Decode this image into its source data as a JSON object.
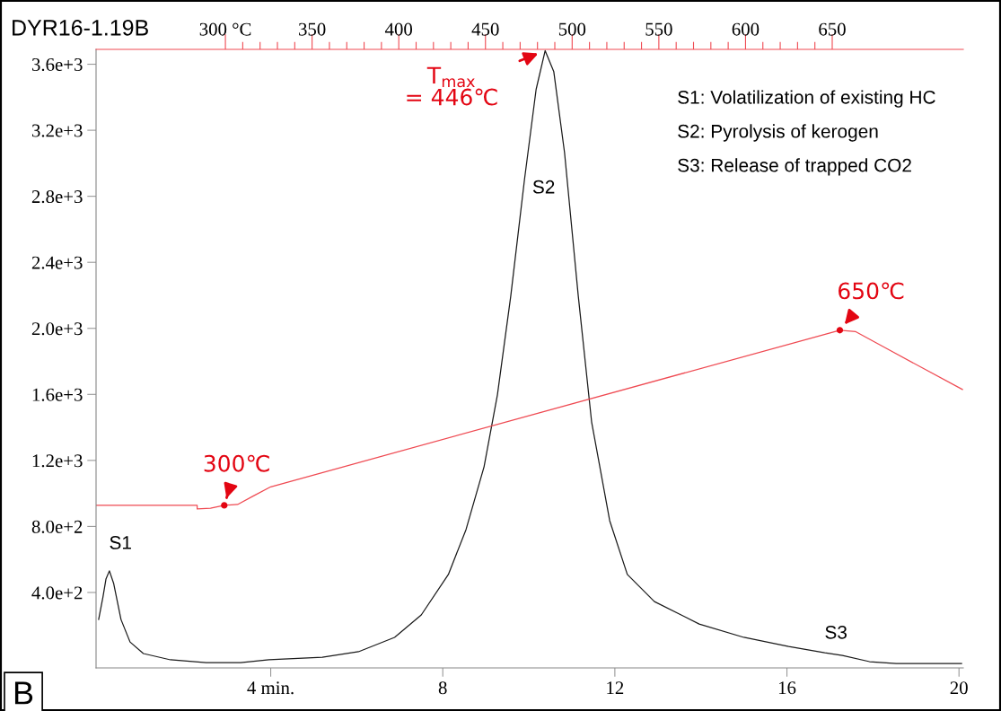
{
  "chart_data": {
    "type": "line",
    "title": "DYR16-1.19B",
    "xlim": [
      -0.06,
      20.1
    ],
    "xticks": [
      {
        "value": 4,
        "label": "4 min."
      },
      8,
      12,
      16,
      20
    ],
    "ylim": [
      -57,
      3690
    ],
    "yticks": [
      {
        "value": 400,
        "label": "4.0e+2"
      },
      {
        "value": 800,
        "label": "8.0e+2"
      },
      {
        "value": 1200,
        "label": "1.2e+3"
      },
      {
        "value": 1600,
        "label": "1.6e+3"
      },
      {
        "value": 2000,
        "label": "2.0e+3"
      },
      {
        "value": 2400,
        "label": "2.4e+3"
      },
      {
        "value": 2800,
        "label": "2.8e+3"
      },
      {
        "value": 3200,
        "label": "3.2e+3"
      },
      {
        "value": 3600,
        "label": "3.6e+3"
      }
    ],
    "x2lim": [
      225.4,
      725.6
    ],
    "x2ticks": [
      {
        "value": 300,
        "label": "300 °C"
      },
      {
        "value": 310,
        "label": null
      },
      {
        "value": 320,
        "label": null
      },
      {
        "value": 330,
        "label": null
      },
      {
        "value": 340,
        "label": null
      },
      350,
      {
        "value": 360,
        "label": null
      },
      {
        "value": 370,
        "label": null
      },
      {
        "value": 380,
        "label": null
      },
      {
        "value": 390,
        "label": null
      },
      400,
      {
        "value": 410,
        "label": null
      },
      {
        "value": 420,
        "label": null
      },
      {
        "value": 430,
        "label": null
      },
      {
        "value": 440,
        "label": null
      },
      450,
      {
        "value": 460,
        "label": null
      },
      {
        "value": 470,
        "label": null
      },
      {
        "value": 480,
        "label": null
      },
      {
        "value": 490,
        "label": null
      },
      500,
      {
        "value": 510,
        "label": null
      },
      {
        "value": 520,
        "label": null
      },
      {
        "value": 530,
        "label": null
      },
      {
        "value": 540,
        "label": null
      },
      550,
      {
        "value": 560,
        "label": null
      },
      {
        "value": 570,
        "label": null
      },
      {
        "value": 580,
        "label": null
      },
      {
        "value": 590,
        "label": null
      },
      600,
      {
        "value": 610,
        "label": null
      },
      {
        "value": 620,
        "label": null
      },
      {
        "value": 630,
        "label": null
      },
      {
        "value": 640,
        "label": null
      },
      650
    ],
    "grid": false,
    "series": [
      {
        "color": "#1a1a1a",
        "x": [
          0,
          0.1,
          0.17,
          0.25,
          0.35,
          0.52,
          0.73,
          1.04,
          1.67,
          2.5,
          3.3,
          3.96,
          5.2,
          6.04,
          6.88,
          7.5,
          8.13,
          8.54,
          8.96,
          9.27,
          9.58,
          9.9,
          10.17,
          10.38,
          10.58,
          10.83,
          11.15,
          11.46,
          11.88,
          12.29,
          12.92,
          13.96,
          15,
          16.04,
          16.88,
          17.29,
          17.92,
          18.54,
          20.06
        ],
        "values": [
          236,
          372,
          481,
          531,
          454,
          236,
          100,
          30,
          -8,
          -25,
          -25,
          -8,
          8,
          41,
          128,
          264,
          509,
          781,
          1162,
          1597,
          2195,
          2903,
          3448,
          3682,
          3556,
          3066,
          2195,
          1433,
          835,
          509,
          345,
          209,
          128,
          73,
          35,
          19,
          -19,
          -30,
          -30
        ]
      },
      {
        "color": "#ef4a52",
        "x": [
          -0.06,
          2.29,
          2.29,
          2.6,
          2.92,
          3.23,
          3.6,
          4.0,
          17.23,
          17.6,
          18.3,
          20.08
        ],
        "values": [
          928,
          928,
          906,
          910,
          928,
          933,
          985,
          1040,
          1989,
          1980,
          1880,
          1630
        ]
      },
      {
        "type": "scatter",
        "color": "#e30613",
        "x": [
          2.92,
          17.23
        ],
        "values": [
          928,
          1989
        ]
      }
    ],
    "annotations": [
      "S1",
      "S2",
      "S3",
      {
        "text": "T$_{max}$\n= 446℃",
        "x": 10.38,
        "y": 3682
      },
      {
        "text": "300℃",
        "x": 2.92,
        "y": 928
      },
      {
        "text": "650℃",
        "x": 17.23,
        "y": 1989
      },
      "S1: Volatilization of existing HC",
      "S2: Pyrolysis of kerogen",
      "S3: Release of trapped CO2",
      "B"
    ]
  }
}
